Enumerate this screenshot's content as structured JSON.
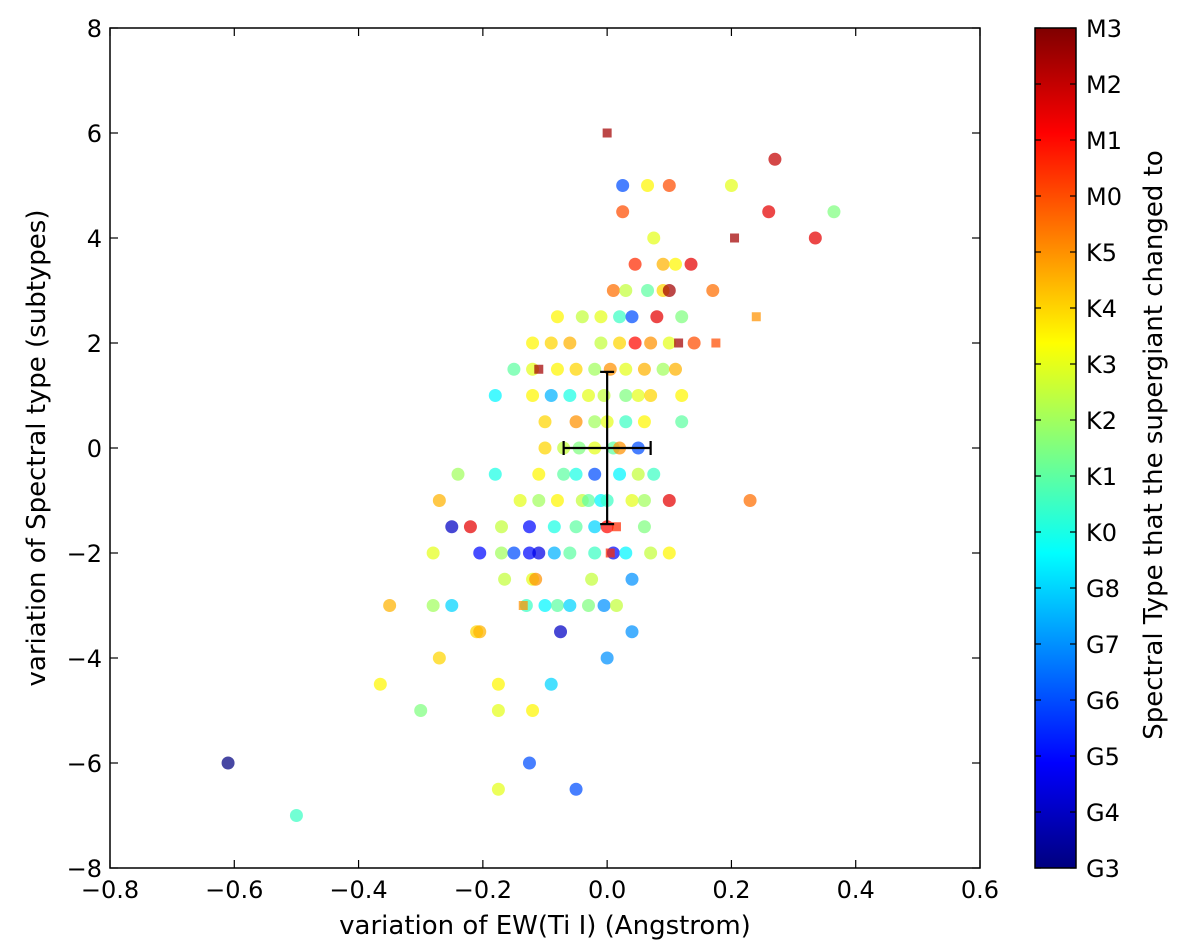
{
  "chart_data": {
    "type": "scatter",
    "xlabel": "variation of EW(Ti I) (Angstrom)",
    "ylabel": "variation of Spectral type  (subtypes)",
    "xlim": [
      -0.8,
      0.6
    ],
    "ylim": [
      -8,
      8
    ],
    "x_ticks": [
      "−0.8",
      "−0.6",
      "−0.4",
      "−0.2",
      "0.0",
      "0.2",
      "0.4",
      "0.6"
    ],
    "y_ticks": [
      "−8",
      "−6",
      "−4",
      "−2",
      "0",
      "2",
      "4",
      "6",
      "8"
    ],
    "grid": false,
    "colorbar": {
      "label": "Spectral Type that the supergiant changed to",
      "ticks": [
        "G3",
        "G4",
        "G5",
        "G6",
        "G7",
        "G8",
        "K0",
        "K1",
        "K2",
        "K3",
        "K4",
        "K5",
        "M0",
        "M1",
        "M2",
        "M3"
      ],
      "colormap": "jet"
    },
    "error_bar": {
      "x": 0.0,
      "y": 0.0,
      "xerr": 0.07,
      "yerr": 1.45,
      "color": "#000000"
    },
    "series": [
      {
        "marker": "circle",
        "points": [
          [
            -0.61,
            -6.0,
            0.0
          ],
          [
            -0.5,
            -7.0,
            6.5
          ],
          [
            -0.125,
            -6.0,
            3.0
          ],
          [
            -0.05,
            -6.5,
            3.0
          ],
          [
            -0.175,
            -6.5,
            9.0
          ],
          [
            -0.365,
            -4.5,
            9.5
          ],
          [
            -0.3,
            -5.0,
            7.5
          ],
          [
            -0.175,
            -5.0,
            9.0
          ],
          [
            -0.12,
            -5.0,
            9.5
          ],
          [
            -0.175,
            -4.5,
            9.5
          ],
          [
            -0.09,
            -4.5,
            5.0
          ],
          [
            -0.27,
            -4.0,
            10.0
          ],
          [
            0.0,
            -4.0,
            4.0
          ],
          [
            -0.35,
            -3.0,
            10.5
          ],
          [
            -0.28,
            -3.0,
            8.0
          ],
          [
            -0.25,
            -3.0,
            5.0
          ],
          [
            -0.21,
            -3.5,
            10.0
          ],
          [
            -0.205,
            -3.5,
            10.5
          ],
          [
            -0.075,
            -3.5,
            1.0
          ],
          [
            0.04,
            -3.5,
            4.0
          ],
          [
            -0.13,
            -3.0,
            6.5
          ],
          [
            -0.1,
            -3.0,
            5.5
          ],
          [
            -0.08,
            -3.0,
            7.0
          ],
          [
            -0.06,
            -3.0,
            5.0
          ],
          [
            -0.03,
            -3.0,
            7.5
          ],
          [
            -0.005,
            -3.0,
            4.0
          ],
          [
            0.015,
            -3.0,
            8.5
          ],
          [
            -0.165,
            -2.5,
            8.5
          ],
          [
            -0.12,
            -2.5,
            9.0
          ],
          [
            -0.115,
            -2.5,
            11.0
          ],
          [
            -0.025,
            -2.5,
            8.5
          ],
          [
            0.04,
            -2.5,
            4.0
          ],
          [
            -0.28,
            -2.0,
            9.0
          ],
          [
            -0.205,
            -2.0,
            2.0
          ],
          [
            -0.17,
            -2.0,
            8.0
          ],
          [
            -0.15,
            -2.0,
            3.0
          ],
          [
            -0.125,
            -2.0,
            2.0
          ],
          [
            -0.11,
            -2.0,
            1.5
          ],
          [
            -0.085,
            -2.0,
            4.5
          ],
          [
            -0.06,
            -2.0,
            7.0
          ],
          [
            -0.02,
            -2.0,
            6.5
          ],
          [
            0.01,
            -2.0,
            2.0
          ],
          [
            0.03,
            -2.0,
            5.5
          ],
          [
            0.07,
            -2.0,
            8.5
          ],
          [
            0.1,
            -2.0,
            9.5
          ],
          [
            -0.25,
            -1.5,
            1.0
          ],
          [
            -0.22,
            -1.5,
            13.5
          ],
          [
            -0.17,
            -1.5,
            8.5
          ],
          [
            -0.125,
            -1.5,
            2.0
          ],
          [
            -0.085,
            -1.5,
            6.0
          ],
          [
            -0.05,
            -1.5,
            7.0
          ],
          [
            -0.02,
            -1.5,
            5.0
          ],
          [
            0.0,
            -1.5,
            13.0
          ],
          [
            0.06,
            -1.5,
            7.5
          ],
          [
            -0.27,
            -1.0,
            10.5
          ],
          [
            -0.14,
            -1.0,
            9.0
          ],
          [
            -0.11,
            -1.0,
            8.0
          ],
          [
            -0.08,
            -1.0,
            9.5
          ],
          [
            -0.04,
            -1.0,
            8.5
          ],
          [
            -0.03,
            -1.0,
            7.0
          ],
          [
            -0.01,
            -1.0,
            5.5
          ],
          [
            0.0,
            -1.0,
            6.5
          ],
          [
            0.04,
            -1.0,
            9.0
          ],
          [
            0.06,
            -1.0,
            8.0
          ],
          [
            0.1,
            -1.0,
            13.5
          ],
          [
            0.23,
            -1.0,
            11.5
          ],
          [
            -0.24,
            -0.5,
            8.0
          ],
          [
            -0.18,
            -0.5,
            6.0
          ],
          [
            -0.11,
            -0.5,
            9.5
          ],
          [
            -0.07,
            -0.5,
            7.0
          ],
          [
            -0.05,
            -0.5,
            6.0
          ],
          [
            -0.02,
            -0.5,
            3.0
          ],
          [
            0.02,
            -0.5,
            5.5
          ],
          [
            0.05,
            -0.5,
            8.5
          ],
          [
            0.075,
            -0.5,
            6.5
          ],
          [
            -0.1,
            0.0,
            10.0
          ],
          [
            -0.07,
            0.0,
            8.5
          ],
          [
            -0.045,
            0.0,
            7.5
          ],
          [
            -0.02,
            0.0,
            9.0
          ],
          [
            0.01,
            0.0,
            7.0
          ],
          [
            0.02,
            0.0,
            11.0
          ],
          [
            0.05,
            0.0,
            3.0
          ],
          [
            -0.1,
            0.5,
            10.0
          ],
          [
            -0.05,
            0.5,
            11.0
          ],
          [
            -0.02,
            0.5,
            8.0
          ],
          [
            0.0,
            0.5,
            9.0
          ],
          [
            0.03,
            0.5,
            6.5
          ],
          [
            0.06,
            0.5,
            9.5
          ],
          [
            0.12,
            0.5,
            7.0
          ],
          [
            -0.18,
            1.0,
            5.5
          ],
          [
            -0.12,
            1.0,
            9.5
          ],
          [
            -0.09,
            1.0,
            4.5
          ],
          [
            -0.06,
            1.0,
            6.0
          ],
          [
            -0.03,
            1.0,
            9.0
          ],
          [
            -0.005,
            1.0,
            8.5
          ],
          [
            0.03,
            1.0,
            7.5
          ],
          [
            0.05,
            1.0,
            9.0
          ],
          [
            0.07,
            1.0,
            10.0
          ],
          [
            0.12,
            1.0,
            9.5
          ],
          [
            -0.15,
            1.5,
            7.0
          ],
          [
            -0.12,
            1.5,
            9.0
          ],
          [
            -0.08,
            1.5,
            9.5
          ],
          [
            -0.05,
            1.5,
            10.0
          ],
          [
            -0.02,
            1.5,
            8.0
          ],
          [
            0.005,
            1.5,
            11.0
          ],
          [
            0.03,
            1.5,
            9.0
          ],
          [
            0.06,
            1.5,
            10.5
          ],
          [
            0.09,
            1.5,
            8.0
          ],
          [
            0.11,
            1.5,
            10.5
          ],
          [
            -0.12,
            2.0,
            9.5
          ],
          [
            -0.09,
            2.0,
            10.0
          ],
          [
            -0.06,
            2.0,
            10.5
          ],
          [
            -0.01,
            2.0,
            8.5
          ],
          [
            0.02,
            2.0,
            10.0
          ],
          [
            0.045,
            2.0,
            13.0
          ],
          [
            0.07,
            2.0,
            11.0
          ],
          [
            0.1,
            2.0,
            9.0
          ],
          [
            0.14,
            2.0,
            12.0
          ],
          [
            -0.08,
            2.5,
            9.5
          ],
          [
            -0.04,
            2.5,
            8.5
          ],
          [
            -0.01,
            2.5,
            9.0
          ],
          [
            0.02,
            2.5,
            6.5
          ],
          [
            0.04,
            2.5,
            3.0
          ],
          [
            0.08,
            2.5,
            13.5
          ],
          [
            0.12,
            2.5,
            7.5
          ],
          [
            0.01,
            3.0,
            11.5
          ],
          [
            0.03,
            3.0,
            8.5
          ],
          [
            0.065,
            3.0,
            7.0
          ],
          [
            0.09,
            3.0,
            10.0
          ],
          [
            0.1,
            3.0,
            14.5
          ],
          [
            0.17,
            3.0,
            11.5
          ],
          [
            0.045,
            3.5,
            12.5
          ],
          [
            0.09,
            3.5,
            10.5
          ],
          [
            0.11,
            3.5,
            9.5
          ],
          [
            0.135,
            3.5,
            13.5
          ],
          [
            0.075,
            4.0,
            9.0
          ],
          [
            0.335,
            4.0,
            13.5
          ],
          [
            0.025,
            4.5,
            12.0
          ],
          [
            0.26,
            4.5,
            13.5
          ],
          [
            0.365,
            4.5,
            7.5
          ],
          [
            0.025,
            5.0,
            3.0
          ],
          [
            0.065,
            5.0,
            9.5
          ],
          [
            0.1,
            5.0,
            12.0
          ],
          [
            0.2,
            5.0,
            9.0
          ],
          [
            0.27,
            5.5,
            14.0
          ]
        ]
      },
      {
        "marker": "square",
        "points": [
          [
            0.0,
            6.0,
            14.5
          ],
          [
            0.205,
            4.0,
            14.5
          ],
          [
            0.24,
            2.5,
            11.0
          ],
          [
            0.115,
            2.0,
            14.5
          ],
          [
            0.175,
            2.0,
            12.0
          ],
          [
            -0.11,
            1.5,
            14.5
          ],
          [
            0.015,
            -1.5,
            12.5
          ],
          [
            -0.135,
            -3.0,
            11.0
          ],
          [
            0.005,
            -2.0,
            12.5
          ]
        ]
      }
    ]
  }
}
